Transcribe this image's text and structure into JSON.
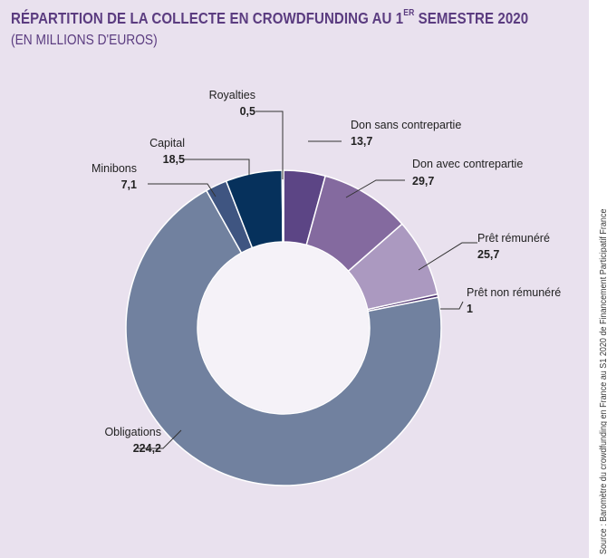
{
  "chart_data": {
    "type": "pie",
    "title": "RÉPARTITION DE LA COLLECTE EN CROWDFUNDING AU 1ER SEMESTRE 2020",
    "subtitle": "(EN MILLIONS D'EUROS)",
    "slices": [
      {
        "label": "Don sans contrepartie",
        "value": 13.7,
        "value_text": "13,7",
        "color": "#5c4585"
      },
      {
        "label": "Don avec contrepartie",
        "value": 29.7,
        "value_text": "29,7",
        "color": "#846a9f"
      },
      {
        "label": "Prêt rémunéré",
        "value": 25.7,
        "value_text": "25,7",
        "color": "#ab99c0"
      },
      {
        "label": "Prêt non rémunéré",
        "value": 1,
        "value_text": "1",
        "color": "#4a2f6d"
      },
      {
        "label": "Obligations",
        "value": 224.2,
        "value_text": "224,2",
        "color": "#71819f"
      },
      {
        "label": "Minibons",
        "value": 7.1,
        "value_text": "7,1",
        "color": "#3f5581"
      },
      {
        "label": "Capital",
        "value": 18.5,
        "value_text": "18,5",
        "color": "#06315c"
      },
      {
        "label": "Royalties",
        "value": 0.5,
        "value_text": "0,5",
        "color": "#2e2d6b"
      }
    ],
    "center_color": "#f5f2f8",
    "source": "Source : Baromètre du crowdfunding en France au S1 2020 de Financement Participatif France"
  }
}
